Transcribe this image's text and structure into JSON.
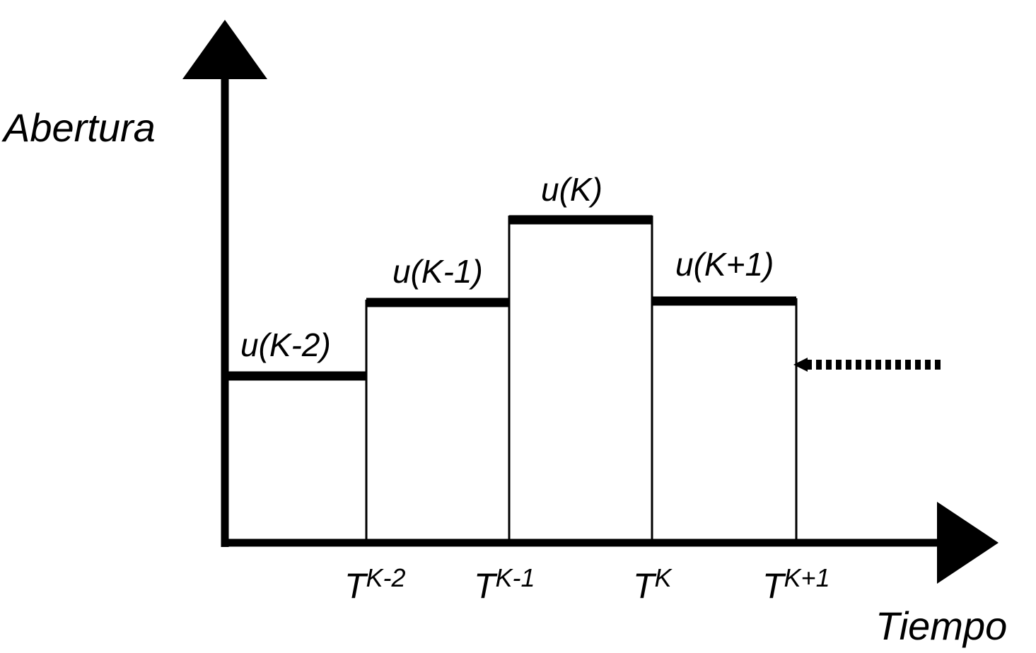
{
  "axes": {
    "y_label": "Abertura",
    "x_label": "Tiempo"
  },
  "steps": [
    {
      "label": "u(K-2)"
    },
    {
      "label": "u(K-1)"
    },
    {
      "label": "u(K)"
    },
    {
      "label": "u(K+1)"
    }
  ],
  "times": [
    {
      "base": "T",
      "sup": "K-2"
    },
    {
      "base": "T",
      "sup": "K-1"
    },
    {
      "base": "T",
      "sup": "K"
    },
    {
      "base": "T",
      "sup": "K+1"
    }
  ]
}
